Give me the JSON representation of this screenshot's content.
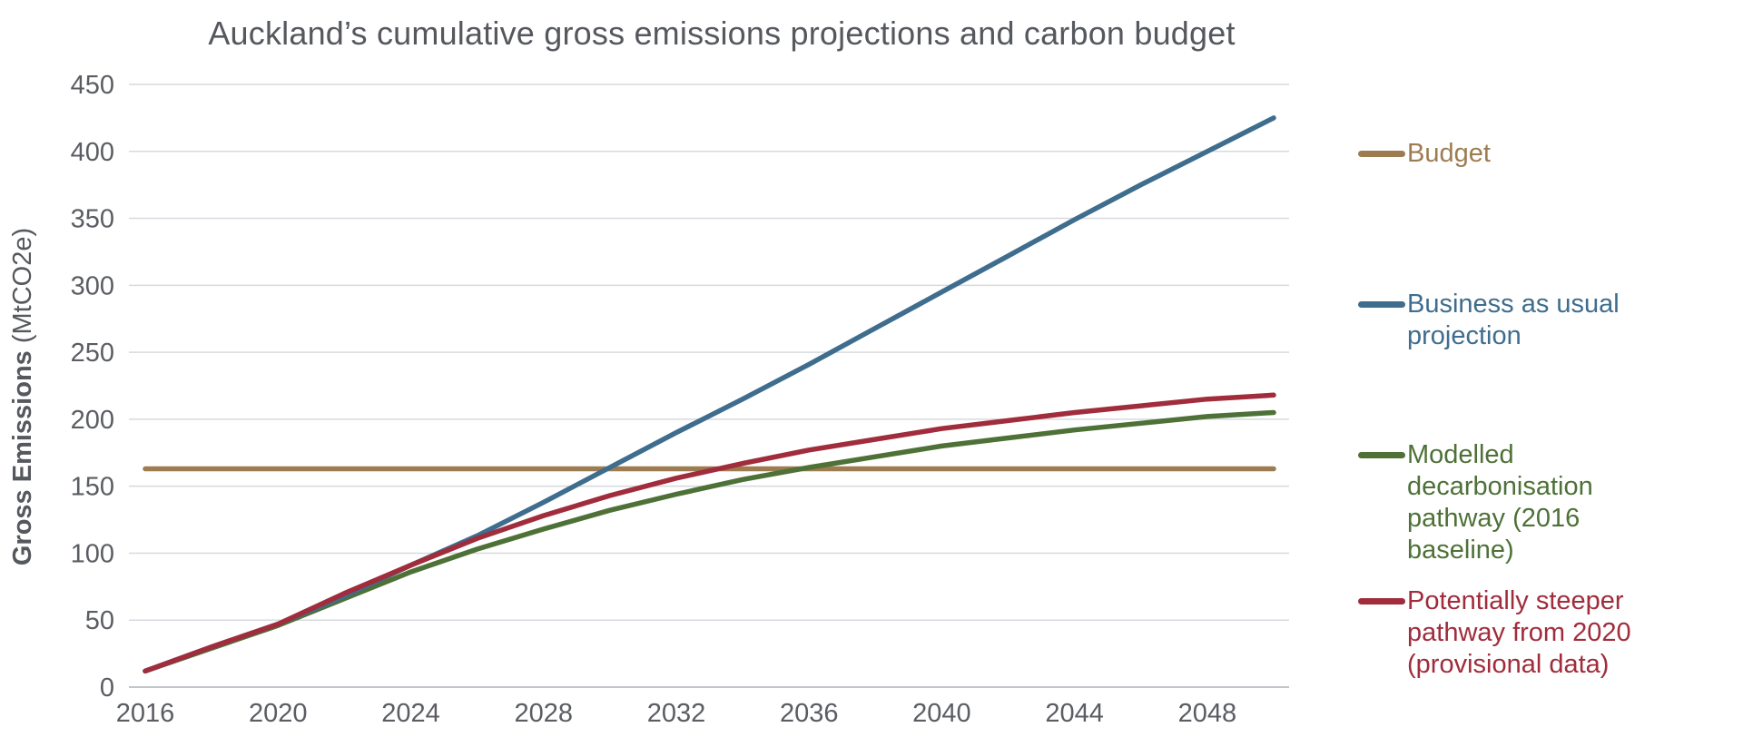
{
  "title": "Auckland’s cumulative gross emissions projections and carbon budget",
  "y_axis": {
    "label_bold": "Gross Emissions",
    "label_unit": " (MtCO2e)",
    "ticks": [
      0,
      50,
      100,
      150,
      200,
      250,
      300,
      350,
      400,
      450
    ]
  },
  "x_axis": {
    "ticks": [
      2016,
      2020,
      2024,
      2028,
      2032,
      2036,
      2040,
      2044,
      2048
    ]
  },
  "colors": {
    "budget": "#9d7c52",
    "bau": "#3e6d8e",
    "modelled": "#4e7137",
    "steeper": "#a02c3c",
    "gridline": "#d6d9de",
    "baseline": "#c2c5ca",
    "axis_text": "#5a5d62",
    "title_text": "#55585d"
  },
  "chart_data": {
    "type": "line",
    "title": "Auckland’s cumulative gross emissions projections and carbon budget",
    "xlabel": "",
    "ylabel": "Gross Emissions (MtCO2e)",
    "xlim": [
      2016,
      2050
    ],
    "ylim": [
      0,
      450
    ],
    "grid": true,
    "legend_position": "right",
    "x": [
      2016,
      2018,
      2020,
      2022,
      2024,
      2026,
      2028,
      2030,
      2032,
      2034,
      2036,
      2038,
      2040,
      2042,
      2044,
      2046,
      2048,
      2050
    ],
    "series": [
      {
        "name": "Budget",
        "color_key": "budget",
        "values": [
          163,
          163,
          163,
          163,
          163,
          163,
          163,
          163,
          163,
          163,
          163,
          163,
          163,
          163,
          163,
          163,
          163,
          163
        ]
      },
      {
        "name": "Modelled decarbonisation pathway (2016 baseline)",
        "color_key": "modelled",
        "values": [
          12,
          29,
          46,
          66,
          86,
          103,
          118,
          132,
          144,
          155,
          164,
          172,
          180,
          186,
          192,
          197,
          202,
          205
        ]
      },
      {
        "name": "Business as usual projection",
        "color_key": "bau",
        "values": [
          12,
          30,
          47,
          68,
          91,
          113,
          138,
          164,
          190,
          215,
          241,
          268,
          295,
          322,
          349,
          375,
          400,
          425
        ]
      },
      {
        "name": "Potentially steeper pathway from 2020 (provisional data)",
        "color_key": "steeper",
        "values": [
          12,
          30,
          47,
          70,
          91,
          111,
          128,
          143,
          156,
          167,
          177,
          185,
          193,
          199,
          205,
          210,
          215,
          218
        ]
      }
    ],
    "legend_order": [
      "Budget",
      "Business as usual projection",
      "Modelled decarbonisation pathway (2016 baseline)",
      "Potentially steeper pathway from 2020 (provisional data)"
    ]
  }
}
